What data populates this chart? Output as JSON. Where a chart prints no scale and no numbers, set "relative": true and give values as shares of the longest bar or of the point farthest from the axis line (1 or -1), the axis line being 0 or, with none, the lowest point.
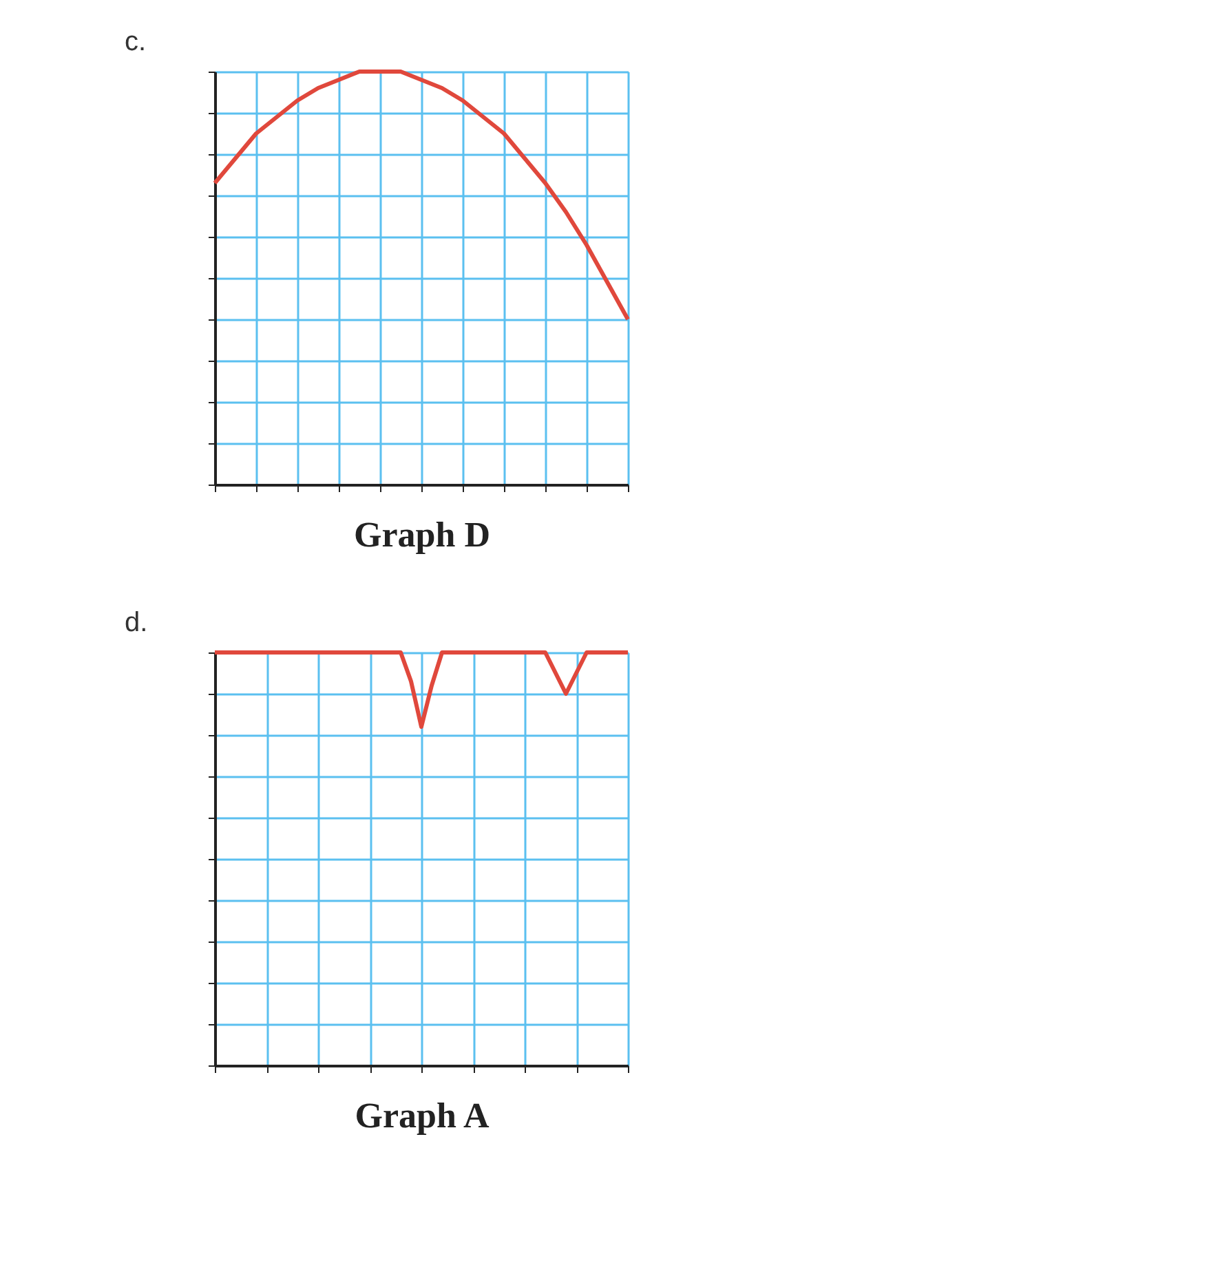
{
  "chart_data": [
    {
      "type": "line",
      "title": "c.",
      "xlabel": "Graph D",
      "relative": true,
      "grid": true,
      "tick_labels": false,
      "categories": [
        null,
        null,
        null,
        null,
        null,
        null,
        null,
        null,
        null,
        null,
        null,
        null,
        null,
        null,
        null,
        null,
        null,
        null,
        null,
        null,
        null
      ],
      "series": [
        {
          "color": "#e0483c",
          "values": [
            0.73,
            0.79,
            0.85,
            0.89,
            0.93,
            0.96,
            0.98,
            1.0,
            1.0,
            1.0,
            0.98,
            0.96,
            0.93,
            0.89,
            0.85,
            0.79,
            0.73,
            0.66,
            0.58,
            0.49,
            0.4
          ]
        }
      ]
    },
    {
      "type": "line",
      "title": "d.",
      "xlabel": "Graph A",
      "relative": true,
      "grid": true,
      "tick_labels": false,
      "categories": [
        null,
        null,
        null,
        null,
        null,
        null,
        null,
        null,
        null,
        null,
        null,
        null,
        null,
        null,
        null,
        null,
        null,
        null,
        null,
        null,
        null,
        null,
        null,
        null,
        null,
        null,
        null,
        null,
        null,
        null,
        null,
        null,
        null,
        null,
        null,
        null,
        null,
        null,
        null,
        null,
        null
      ],
      "series": [
        {
          "color": "#e0483c",
          "values": [
            1,
            1,
            1,
            1,
            1,
            1,
            1,
            1,
            1,
            1,
            1,
            1,
            1,
            1,
            1,
            1,
            1,
            1,
            1,
            0.93,
            0.82,
            0.92,
            1,
            1,
            1,
            1,
            1,
            1,
            1,
            1,
            1,
            1,
            1,
            0.95,
            0.9,
            0.95,
            1,
            1,
            1,
            1,
            1
          ]
        }
      ]
    }
  ]
}
